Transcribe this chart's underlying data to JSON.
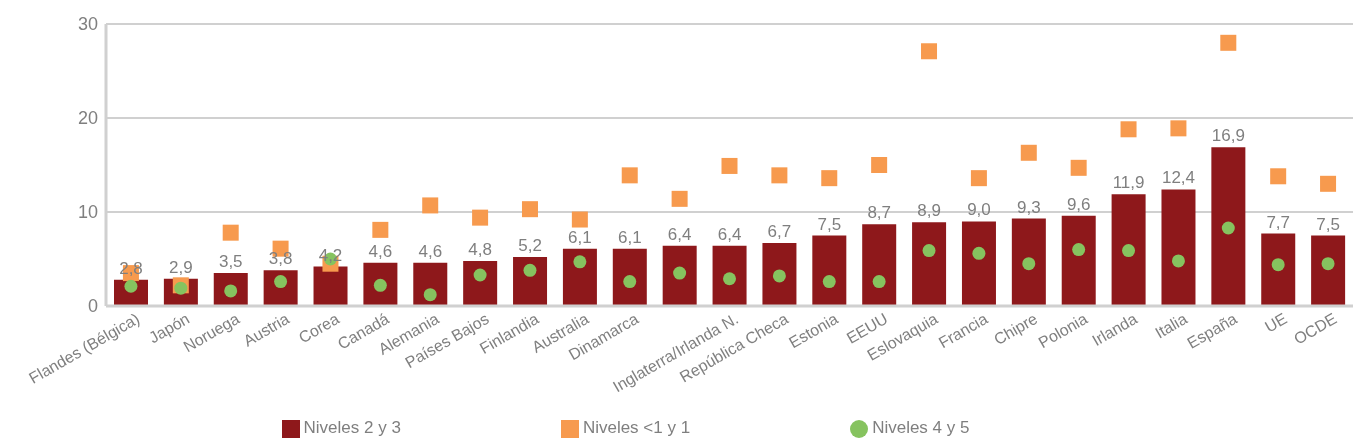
{
  "chart_data": {
    "type": "bar",
    "categories": [
      "Flandes (Bélgica)",
      "Japón",
      "Noruega",
      "Austria",
      "Corea",
      "Canadá",
      "Alemania",
      "Países Bajos",
      "Finlandia",
      "Australia",
      "Dinamarca",
      null,
      "Inglaterra/Irlanda N.",
      "República Checa",
      "Estonia",
      "EEUU",
      "Eslovaquia",
      "Francia",
      "Chipre",
      "Polonia",
      "Irlanda",
      "Italia",
      "España",
      "UE",
      "OCDE"
    ],
    "series": [
      {
        "name": "Niveles 2 y 3",
        "color": "#8e181b",
        "values": [
          2.8,
          2.9,
          3.5,
          3.8,
          4.2,
          4.6,
          4.6,
          4.8,
          5.2,
          6.1,
          6.1,
          6.4,
          6.4,
          6.7,
          7.5,
          8.7,
          8.9,
          9.0,
          9.3,
          9.6,
          11.9,
          12.4,
          16.9,
          7.7,
          7.5
        ],
        "value_labels": [
          "2,8",
          "2,9",
          "3,5",
          "3,8",
          "4,2",
          "4,6",
          "4,6",
          "4,8",
          "5,2",
          "6,1",
          "6,1",
          "6,4",
          "6,4",
          "6,7",
          "7,5",
          "8,7",
          "8,9",
          "9,0",
          "9,3",
          "9,6",
          "11,9",
          "12,4",
          "16,9",
          "7,7",
          "7,5"
        ]
      },
      {
        "name": "Niveles <1 y 1",
        "type": "scatter",
        "marker": "square",
        "color": "#f79a4e",
        "values": [
          3.5,
          2.2,
          7.8,
          6.1,
          4.5,
          8.1,
          10.7,
          9.4,
          10.3,
          9.2,
          13.9,
          11.4,
          14.9,
          13.9,
          13.6,
          15.0,
          27.1,
          13.6,
          16.3,
          14.7,
          18.8,
          18.9,
          28.0,
          13.8,
          13.0
        ]
      },
      {
        "name": "Niveles 4 y 5",
        "type": "scatter",
        "marker": "circle",
        "color": "#86c35f",
        "values": [
          2.1,
          1.9,
          1.6,
          2.6,
          5.0,
          2.2,
          1.2,
          3.3,
          3.8,
          4.7,
          2.6,
          3.5,
          2.9,
          3.2,
          2.6,
          2.6,
          5.9,
          5.6,
          4.5,
          6.0,
          5.9,
          4.8,
          8.3,
          4.4,
          4.5
        ]
      }
    ],
    "ylim": [
      0,
      30
    ],
    "yticks": [
      0,
      10,
      20,
      30
    ],
    "grid": "y",
    "legend": "bottom"
  }
}
